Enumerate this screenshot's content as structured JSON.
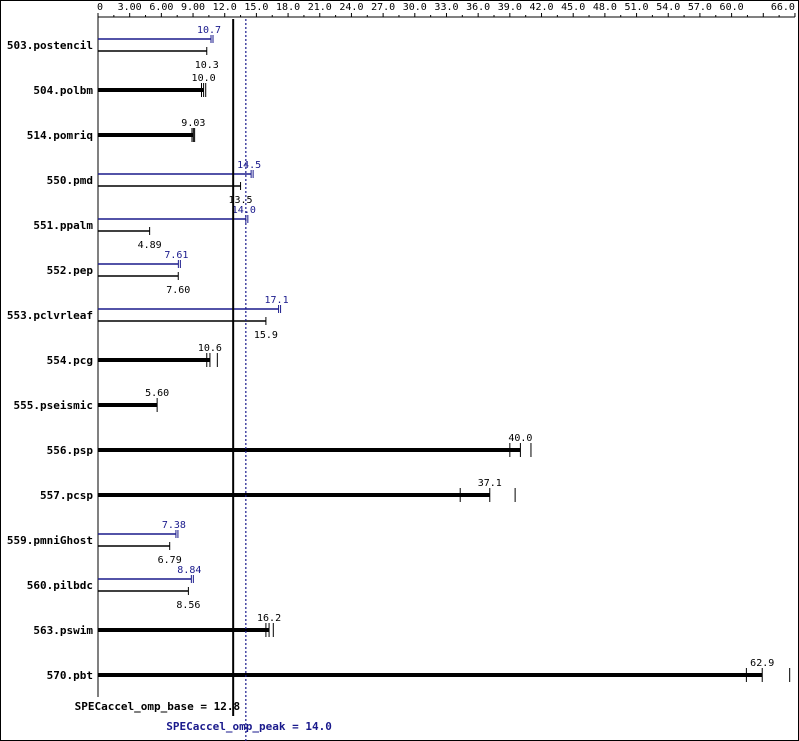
{
  "colors": {
    "base": "#000000",
    "peak": "#1a1a8c"
  },
  "chart_data": {
    "type": "bar",
    "orientation": "horizontal",
    "xlim": [
      0,
      66
    ],
    "ticks": [
      "0",
      "3.00",
      "6.00",
      "9.00",
      "12.0",
      "15.0",
      "18.0",
      "21.0",
      "24.0",
      "27.0",
      "30.0",
      "33.0",
      "36.0",
      "39.0",
      "42.0",
      "45.0",
      "48.0",
      "51.0",
      "54.0",
      "57.0",
      "60.0",
      "66.0"
    ],
    "benchmarks": [
      {
        "name": "503.postencil",
        "base": 10.3,
        "peak": 10.7,
        "base_label": "10.3",
        "peak_label": "10.7",
        "base_runs": [
          10.3
        ]
      },
      {
        "name": "504.polbm",
        "base": 10.0,
        "peak": null,
        "base_label": "10.0",
        "peak_label": "",
        "base_runs": [
          9.8,
          10.0,
          10.2
        ]
      },
      {
        "name": "514.pomriq",
        "base": 9.03,
        "peak": null,
        "base_label": "9.03",
        "peak_label": "",
        "base_runs": [
          8.9,
          9.03,
          9.15
        ]
      },
      {
        "name": "550.pmd",
        "base": 13.5,
        "peak": 14.5,
        "base_label": "13.5",
        "peak_label": "14.5",
        "base_runs": [
          13.5
        ]
      },
      {
        "name": "551.ppalm",
        "base": 4.89,
        "peak": 14.0,
        "base_label": "4.89",
        "peak_label": "14.0",
        "base_runs": [
          4.89
        ]
      },
      {
        "name": "552.pep",
        "base": 7.6,
        "peak": 7.61,
        "base_label": "7.60",
        "peak_label": "7.61",
        "base_runs": [
          7.6
        ]
      },
      {
        "name": "553.pclvrleaf",
        "base": 15.9,
        "peak": 17.1,
        "base_label": "15.9",
        "peak_label": "17.1",
        "base_runs": [
          15.9
        ]
      },
      {
        "name": "554.pcg",
        "base": 10.6,
        "peak": null,
        "base_label": "10.6",
        "peak_label": "",
        "base_runs": [
          10.3,
          10.6,
          11.3
        ]
      },
      {
        "name": "555.pseismic",
        "base": 5.6,
        "peak": null,
        "base_label": "5.60",
        "peak_label": "",
        "base_runs": [
          5.6
        ]
      },
      {
        "name": "556.psp",
        "base": 40.0,
        "peak": null,
        "base_label": "40.0",
        "peak_label": "",
        "base_runs": [
          39.0,
          40.0,
          41.0
        ]
      },
      {
        "name": "557.pcsp",
        "base": 37.1,
        "peak": null,
        "base_label": "37.1",
        "peak_label": "",
        "base_runs": [
          34.3,
          37.1,
          39.5
        ]
      },
      {
        "name": "559.pmniGhost",
        "base": 6.79,
        "peak": 7.38,
        "base_label": "6.79",
        "peak_label": "7.38",
        "base_runs": [
          6.79
        ]
      },
      {
        "name": "560.pilbdc",
        "base": 8.56,
        "peak": 8.84,
        "base_label": "8.56",
        "peak_label": "8.84",
        "base_runs": [
          8.56
        ]
      },
      {
        "name": "563.pswim",
        "base": 16.2,
        "peak": null,
        "base_label": "16.2",
        "peak_label": "",
        "base_runs": [
          15.9,
          16.2,
          16.6
        ]
      },
      {
        "name": "570.pbt",
        "base": 62.9,
        "peak": null,
        "base_label": "62.9",
        "peak_label": "",
        "base_runs": [
          61.4,
          62.9,
          65.5
        ]
      }
    ],
    "base_ref": {
      "value": 12.8,
      "label": "SPECaccel_omp_base = 12.8"
    },
    "peak_ref": {
      "value": 14.0,
      "label": "SPECaccel_omp_peak = 14.0"
    }
  }
}
